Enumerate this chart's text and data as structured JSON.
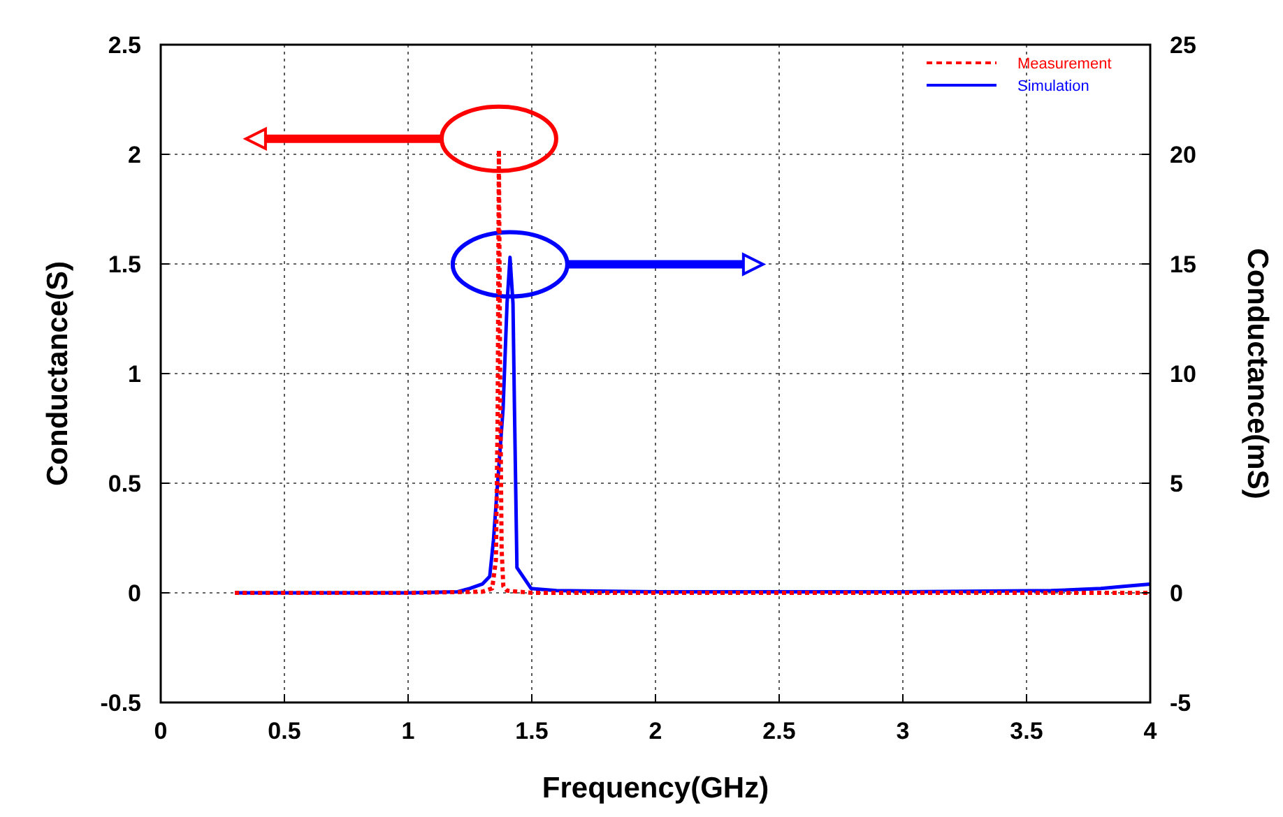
{
  "chart_data": {
    "type": "line",
    "xlabel": "Frequency(GHz)",
    "ylabel": "Conductance(S)",
    "y2label": "Conductance(mS)",
    "xlim": [
      0,
      4
    ],
    "xticks": [
      0,
      0.5,
      1,
      1.5,
      2,
      2.5,
      3,
      3.5,
      4
    ],
    "ylim": [
      -0.5,
      2.5
    ],
    "yticks": [
      -0.5,
      0,
      0.5,
      1,
      1.5,
      2,
      2.5
    ],
    "y2lim": [
      -5,
      25
    ],
    "y2ticks": [
      -5,
      0,
      5,
      10,
      15,
      20,
      25
    ],
    "grid": true,
    "legend": "top right",
    "series": [
      {
        "name": "Measurement",
        "color": "#ff0000",
        "line_style": "dotted",
        "axis": "y",
        "x": [
          0.3,
          1.0,
          1.3,
          1.34,
          1.355,
          1.362,
          1.367,
          1.372,
          1.378,
          1.385,
          1.4,
          1.5,
          2.0,
          3.0,
          4.0
        ],
        "values": [
          0,
          0,
          0.005,
          0.02,
          0.15,
          0.8,
          2.02,
          1.0,
          0.2,
          0.03,
          0.01,
          0,
          0,
          0,
          0
        ]
      },
      {
        "name": "Simulation",
        "color": "#0000ff",
        "line_style": "solid",
        "axis": "y2",
        "x": [
          0.3,
          1.0,
          1.2,
          1.25,
          1.3,
          1.33,
          1.345,
          1.384,
          1.4,
          1.412,
          1.424,
          1.43,
          1.44,
          1.497,
          1.6,
          2.0,
          3.0,
          3.6,
          3.8,
          3.9,
          4.0
        ],
        "values": [
          0,
          0,
          0.05,
          0.2,
          0.4,
          0.75,
          2.4,
          8.4,
          13.2,
          15.3,
          13.2,
          8.4,
          1.15,
          0.2,
          0.1,
          0.05,
          0.05,
          0.1,
          0.2,
          0.3,
          0.4
        ]
      }
    ]
  }
}
